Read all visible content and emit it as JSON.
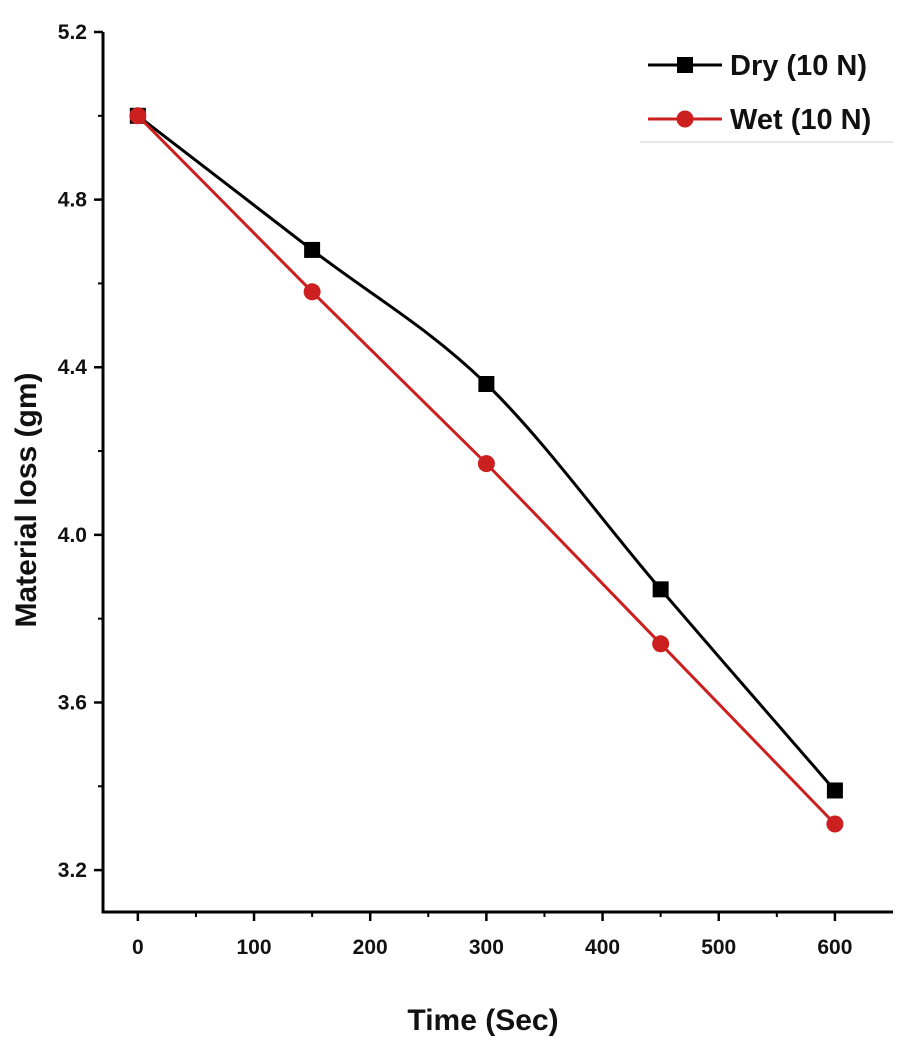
{
  "chart_data": {
    "type": "line",
    "title": "",
    "xlabel": "Time (Sec)",
    "ylabel": "Material loss (gm)",
    "xlim": [
      -30,
      650
    ],
    "ylim": [
      3.1,
      5.2
    ],
    "xticks": [
      "0",
      "100",
      "200",
      "300",
      "400",
      "500",
      "600"
    ],
    "yticks": [
      "3.2",
      "3.6",
      "4.0",
      "4.4",
      "4.8",
      "5.2"
    ],
    "grid": false,
    "legend_position": "top-right",
    "x": [
      0,
      150,
      300,
      450,
      600
    ],
    "series": [
      {
        "name": "Dry (10 N)",
        "color": "#000000",
        "marker": "square",
        "values": [
          5.0,
          4.68,
          4.36,
          3.87,
          3.39
        ]
      },
      {
        "name": "Wet (10 N)",
        "color": "#cc1f1f",
        "marker": "circle",
        "values": [
          5.0,
          4.58,
          4.17,
          3.74,
          3.31
        ]
      }
    ]
  }
}
